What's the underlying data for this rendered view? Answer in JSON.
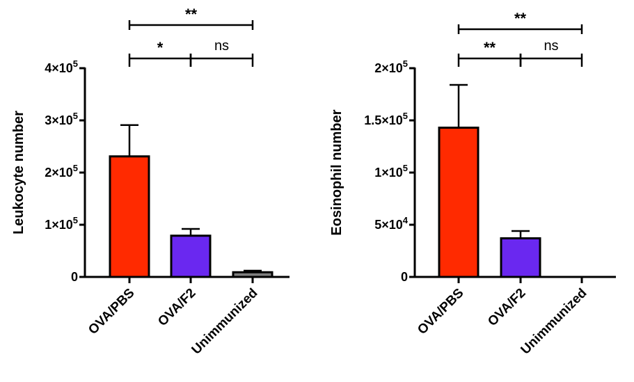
{
  "chart_data": [
    {
      "type": "bar",
      "ylabel": "Leukocyte number",
      "categories": [
        "OVA/PBS",
        "OVA/F2",
        "Unimmunized"
      ],
      "values": [
        231000,
        79000,
        9000
      ],
      "errors": [
        60000,
        13000,
        3000
      ],
      "colors": [
        "#ff2a00",
        "#6a28f0",
        "#7f7f7f"
      ],
      "ylim": [
        0,
        400000
      ],
      "yticks": [
        {
          "value": 0,
          "base": "0",
          "exp": ""
        },
        {
          "value": 100000,
          "base": "1×10",
          "exp": "5"
        },
        {
          "value": 200000,
          "base": "2×10",
          "exp": "5"
        },
        {
          "value": 300000,
          "base": "3×10",
          "exp": "5"
        },
        {
          "value": 400000,
          "base": "4×10",
          "exp": "5"
        }
      ],
      "significance": [
        {
          "from": 0,
          "to": 2,
          "label": "**",
          "level": 2
        },
        {
          "from": 0,
          "to": 1,
          "label": "*",
          "level": 1
        },
        {
          "from": 1,
          "to": 2,
          "label": "ns",
          "level": 1
        }
      ]
    },
    {
      "type": "bar",
      "ylabel": "Eosinophil number",
      "categories": [
        "OVA/PBS",
        "OVA/F2",
        "Unimmunized"
      ],
      "values": [
        143000,
        37000,
        0
      ],
      "errors": [
        41000,
        7000,
        0
      ],
      "colors": [
        "#ff2a00",
        "#6a28f0",
        "#7f7f7f"
      ],
      "ylim": [
        0,
        200000
      ],
      "yticks": [
        {
          "value": 0,
          "base": "0",
          "exp": ""
        },
        {
          "value": 50000,
          "base": "5×10",
          "exp": "4"
        },
        {
          "value": 100000,
          "base": "1×10",
          "exp": "5"
        },
        {
          "value": 150000,
          "base": "1.5×10",
          "exp": "5"
        },
        {
          "value": 200000,
          "base": "2×10",
          "exp": "5"
        }
      ],
      "significance": [
        {
          "from": 0,
          "to": 2,
          "label": "**",
          "level": 2
        },
        {
          "from": 0,
          "to": 1,
          "label": "**",
          "level": 1
        },
        {
          "from": 1,
          "to": 2,
          "label": "ns",
          "level": 1
        }
      ]
    }
  ]
}
